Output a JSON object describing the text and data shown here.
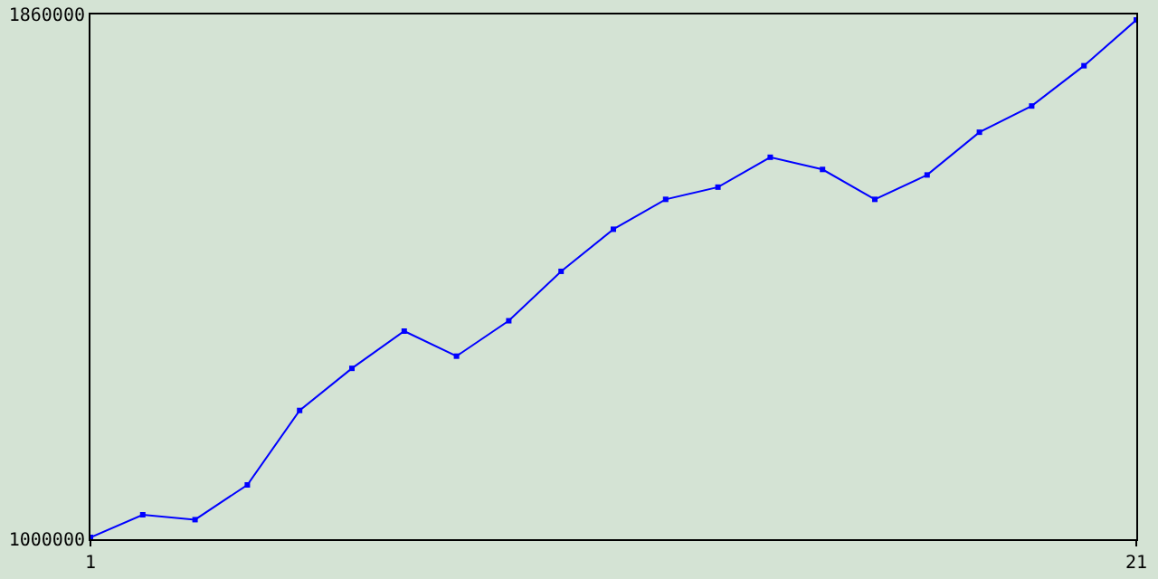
{
  "chart_data": {
    "type": "line",
    "x": [
      1,
      2,
      3,
      4,
      5,
      6,
      7,
      8,
      9,
      10,
      11,
      12,
      13,
      14,
      15,
      16,
      17,
      18,
      19,
      20,
      21
    ],
    "series": [
      {
        "color": "#0000ff",
        "values": [
          1003000,
          1040000,
          1032000,
          1089000,
          1211000,
          1280000,
          1341000,
          1300000,
          1358000,
          1439000,
          1508000,
          1557000,
          1577000,
          1626000,
          1606000,
          1557000,
          1597000,
          1667000,
          1710000,
          1776000,
          1851000
        ]
      }
    ],
    "xlim": [
      1,
      21
    ],
    "xticks": [
      1,
      21
    ],
    "ylim": [
      1000000,
      1860000
    ],
    "yticks": [
      1000000,
      1860000
    ],
    "legend": false,
    "marker": "square",
    "line_style": "solid"
  }
}
